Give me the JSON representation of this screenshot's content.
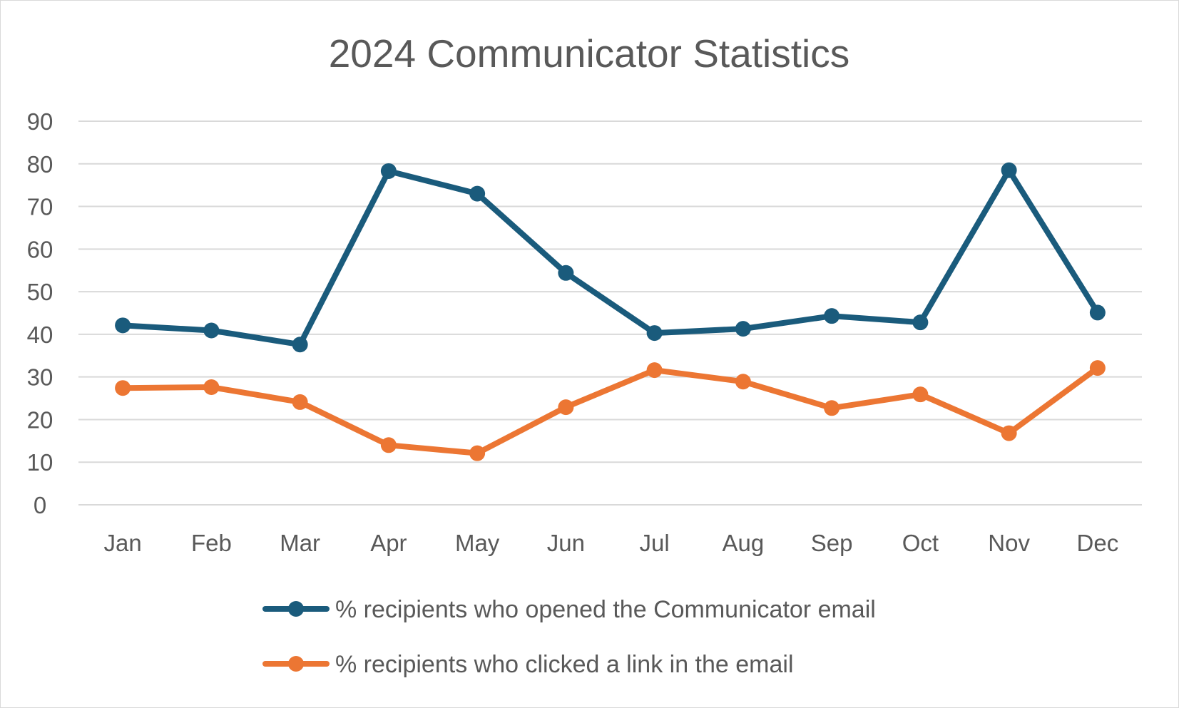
{
  "chart_data": {
    "type": "line",
    "title": "2024 Communicator Statistics",
    "xlabel": "",
    "ylabel": "",
    "categories": [
      "Jan",
      "Feb",
      "Mar",
      "Apr",
      "May",
      "Jun",
      "Jul",
      "Aug",
      "Sep",
      "Oct",
      "Nov",
      "Dec"
    ],
    "y_ticks": [
      "0",
      "10",
      "20",
      "30",
      "40",
      "50",
      "60",
      "70",
      "80",
      "90"
    ],
    "ylim": [
      0,
      90
    ],
    "grid": true,
    "legend_position": "bottom",
    "series": [
      {
        "name": "% recipients who opened the Communicator email",
        "color": "#1a5b7c",
        "values": [
          42.1,
          40.9,
          37.6,
          78.3,
          73.0,
          54.4,
          40.3,
          41.3,
          44.3,
          42.8,
          78.5,
          45.1
        ]
      },
      {
        "name": "% recipients who clicked a link in the email",
        "color": "#ec7633",
        "values": [
          27.4,
          27.6,
          24.1,
          14.0,
          12.1,
          22.9,
          31.6,
          28.9,
          22.7,
          25.9,
          16.8,
          32.1
        ]
      }
    ]
  }
}
